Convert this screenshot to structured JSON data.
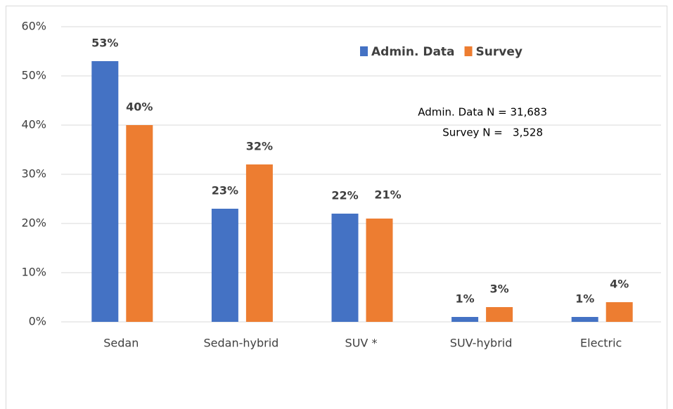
{
  "chart_data": {
    "type": "bar",
    "categories": [
      "Sedan",
      "Sedan-hybrid",
      "SUV *",
      "SUV-hybrid",
      "Electric"
    ],
    "series": [
      {
        "name": "Admin. Data",
        "color": "#4472c4",
        "values": [
          53,
          23,
          22,
          1,
          1
        ],
        "value_labels": [
          "53%",
          "23%",
          "22%",
          "1%",
          "1%"
        ]
      },
      {
        "name": "Survey",
        "color": "#ed7d31",
        "values": [
          40,
          32,
          21,
          3,
          4
        ],
        "value_labels": [
          "40%",
          "32%",
          "21%",
          "3%",
          "4%"
        ]
      }
    ],
    "ylim": [
      0,
      60
    ],
    "yticks": [
      {
        "value": 0,
        "label": "0%"
      },
      {
        "value": 10,
        "label": "10%"
      },
      {
        "value": 20,
        "label": "20%"
      },
      {
        "value": 30,
        "label": "30%"
      },
      {
        "value": 40,
        "label": "40%"
      },
      {
        "value": 50,
        "label": "50%"
      },
      {
        "value": 60,
        "label": "60%"
      }
    ],
    "grid": true,
    "annotations": [
      "Admin. Data N = 31,683",
      "Survey N =   3,528"
    ]
  }
}
